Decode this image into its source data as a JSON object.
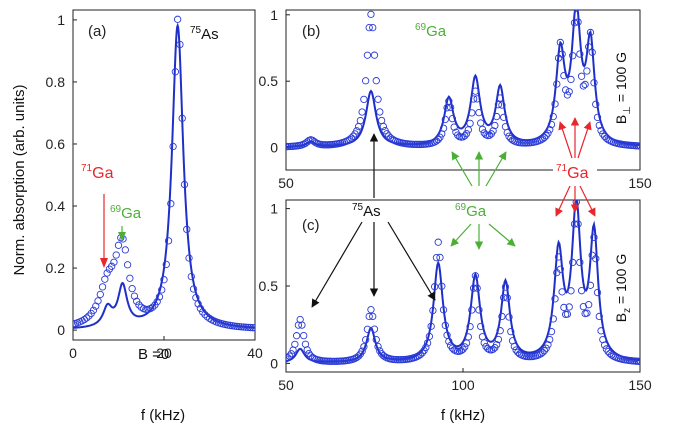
{
  "figure": {
    "ylabel": "Norm. absorption (arb. units)",
    "xlabel_a": "f (kHz)",
    "xlabel_bc": "f (kHz)"
  },
  "colors": {
    "fit_line": "#1f2fc8",
    "data_marker": "#2a3bd6",
    "ga71": "#e8262b",
    "ga69": "#4caf35",
    "as75": "#111111"
  },
  "chart_data": [
    {
      "id": "a",
      "type": "line",
      "panel_label": "(a)",
      "xlim": [
        0,
        40
      ],
      "ylim": [
        0,
        1
      ],
      "xticks": [
        0,
        20,
        40
      ],
      "yticks": [
        0,
        0.2,
        0.4,
        0.6,
        0.8,
        1
      ],
      "ytick_labels": [
        "0",
        "0.2",
        "0.4",
        "0.6",
        "0.8",
        "1"
      ],
      "field_label": "B =0",
      "annotations": {
        "as75": {
          "sup": "75",
          "text": "As"
        },
        "ga71": {
          "sup": "71",
          "text": "Ga"
        },
        "ga69": {
          "sup": "69",
          "text": "Ga"
        }
      },
      "peaks": [
        {
          "label": "71Ga",
          "f": 7.5
        },
        {
          "label": "69Ga",
          "f": 10.8
        },
        {
          "label": "75As",
          "f": 23.0
        }
      ],
      "series": [
        {
          "kind": "fit",
          "style": "line",
          "lorentz": [
            [
              7.6,
              0.06,
              1.2
            ],
            [
              10.9,
              0.13,
              1.2
            ],
            [
              23.0,
              0.98,
              1.5
            ]
          ]
        },
        {
          "kind": "measured",
          "style": "circles",
          "x_step": 0.5,
          "lorentz": [
            [
              7.6,
              0.12,
              2.2
            ],
            [
              10.8,
              0.25,
              1.8
            ],
            [
              23.1,
              1.0,
              1.3
            ]
          ]
        }
      ]
    },
    {
      "id": "b",
      "type": "line",
      "panel_label": "(b)",
      "xlim": [
        50,
        150
      ],
      "ylim": [
        0,
        1
      ],
      "xticks": [
        50,
        150
      ],
      "yticks": [
        0,
        0.5,
        1
      ],
      "ytick_labels": [
        "0",
        "0.5",
        "1"
      ],
      "field_label": {
        "main": "B",
        "sub": "⊥",
        "rest": " = 100 G"
      },
      "annotations": {
        "ga69": {
          "sup": "69",
          "text": "Ga"
        }
      },
      "peaks": [
        {
          "f": 57
        },
        {
          "f": 74
        },
        {
          "f": 96
        },
        {
          "f": 103.5
        },
        {
          "f": 110.5
        },
        {
          "f": 127.5
        },
        {
          "f": 132
        },
        {
          "f": 136
        }
      ],
      "series": [
        {
          "kind": "fit",
          "style": "line",
          "lorentz": [
            [
              57,
              0.04,
              1.5
            ],
            [
              74,
              0.42,
              1.7
            ],
            [
              96,
              0.35,
              1.6
            ],
            [
              103.5,
              0.5,
              1.6
            ],
            [
              110.5,
              0.43,
              1.5
            ],
            [
              127.5,
              0.67,
              1.5
            ],
            [
              132,
              0.95,
              1.5
            ],
            [
              136,
              0.73,
              1.4
            ]
          ]
        },
        {
          "kind": "measured",
          "style": "circles",
          "x_step": 0.5,
          "lorentz": [
            [
              57,
              0.05,
              1.5
            ],
            [
              74,
              1.0,
              1.5
            ],
            [
              96,
              0.33,
              1.2
            ],
            [
              103.5,
              0.4,
              1.2
            ],
            [
              110.5,
              0.35,
              1.2
            ],
            [
              127.5,
              0.71,
              1.2
            ],
            [
              132,
              0.98,
              1.2
            ],
            [
              136,
              0.77,
              1.1
            ]
          ]
        }
      ]
    },
    {
      "id": "c",
      "type": "line",
      "panel_label": "(c)",
      "xlim": [
        50,
        150
      ],
      "ylim": [
        0,
        1
      ],
      "xticks": [
        50,
        100,
        150
      ],
      "yticks": [
        0,
        0.5,
        1
      ],
      "ytick_labels": [
        "0",
        "0.5",
        "1"
      ],
      "field_label": {
        "main": "B",
        "sub": "z",
        "rest": " = 100 G"
      },
      "annotations": {
        "as75": {
          "sup": "75",
          "text": "As"
        },
        "ga69": {
          "sup": "69",
          "text": "Ga"
        },
        "ga71": {
          "sup": "71",
          "text": "Ga"
        }
      },
      "peaks": [
        {
          "f": 54
        },
        {
          "f": 74
        },
        {
          "f": 93
        },
        {
          "f": 103.5
        },
        {
          "f": 112
        },
        {
          "f": 127
        },
        {
          "f": 132
        },
        {
          "f": 137
        }
      ],
      "series": [
        {
          "kind": "fit",
          "style": "line",
          "lorentz": [
            [
              54,
              0.09,
              1.5
            ],
            [
              74,
              0.22,
              1.5
            ],
            [
              93,
              0.63,
              1.6
            ],
            [
              103.5,
              0.54,
              1.6
            ],
            [
              112,
              0.5,
              1.5
            ],
            [
              127,
              0.68,
              1.5
            ],
            [
              132,
              0.95,
              1.5
            ],
            [
              137,
              0.8,
              1.4
            ]
          ]
        },
        {
          "kind": "measured",
          "style": "circles",
          "x_step": 0.5,
          "lorentz": [
            [
              54,
              0.28,
              1.3
            ],
            [
              74,
              0.34,
              1.3
            ],
            [
              93,
              0.77,
              1.3
            ],
            [
              103.5,
              0.54,
              1.2
            ],
            [
              112,
              0.47,
              1.2
            ],
            [
              127,
              0.62,
              1.2
            ],
            [
              132,
              0.97,
              1.2
            ],
            [
              137,
              0.75,
              1.1
            ]
          ]
        }
      ]
    }
  ]
}
